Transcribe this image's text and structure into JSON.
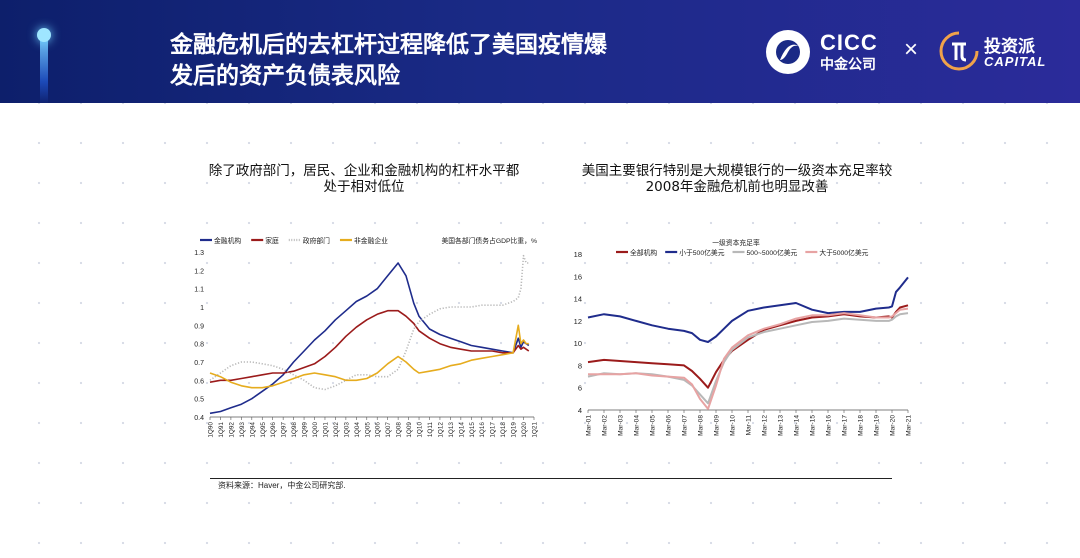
{
  "header": {
    "title_line1": "金融危机后的去杠杆过程降低了美国疫情爆",
    "title_line2": "发后的资产负债表风险",
    "logo_cicc_en": "CICC",
    "logo_cicc_cn": "中金公司",
    "logo_separator": "×",
    "logo_partner_cn": "投资派",
    "logo_partner_en": "CAPITAL"
  },
  "colors": {
    "banner": "#1a2a86",
    "navy": "#1f2c8c",
    "darkred": "#9b1b1b",
    "gray": "#b8b8b8",
    "gold": "#e6ac1e",
    "pink": "#e7a3a3"
  },
  "left_chart_title_1": "除了政府部门，居民、企业和金融机构的杠杆水平都",
  "left_chart_title_2": "处于相对低位",
  "right_chart_title_1": "美国主要银行特别是大规模银行的一级资本充足率较",
  "right_chart_title_2": "2008年金融危机前也明显改善",
  "source": "资料来源：Haver，中金公司研究部.",
  "chart_data": [
    {
      "type": "line",
      "title": "美国各部门债务占GDP比重，%",
      "ylim": [
        0.4,
        1.3
      ],
      "yticks": [
        0.4,
        0.5,
        0.6,
        0.7,
        0.8,
        0.9,
        1,
        1.1,
        1.2,
        1.3
      ],
      "xticks": [
        "1Q90",
        "1Q91",
        "1Q92",
        "1Q93",
        "1Q94",
        "1Q95",
        "1Q96",
        "1Q97",
        "1Q98",
        "1Q99",
        "1Q00",
        "1Q01",
        "1Q02",
        "1Q03",
        "1Q04",
        "1Q05",
        "1Q06",
        "1Q07",
        "1Q08",
        "1Q09",
        "1Q10",
        "1Q11",
        "1Q12",
        "1Q13",
        "1Q14",
        "1Q15",
        "1Q16",
        "1Q17",
        "1Q18",
        "1Q19",
        "1Q20",
        "1Q21"
      ],
      "x": [
        1990,
        1991,
        1992,
        1993,
        1994,
        1995,
        1996,
        1997,
        1998,
        1999,
        2000,
        2001,
        2002,
        2003,
        2004,
        2005,
        2006,
        2007,
        2008,
        2008.75,
        2009.5,
        2010,
        2011,
        2012,
        2013,
        2014,
        2015,
        2016,
        2017,
        2018,
        2019,
        2019.5,
        2019.75,
        2020,
        2020.25,
        2020.5,
        2021
      ],
      "legend_position": "top",
      "series": [
        {
          "name": "金融机构",
          "style": "solid",
          "color": "#1f2c8c",
          "values": [
            0.42,
            0.43,
            0.45,
            0.47,
            0.5,
            0.54,
            0.58,
            0.63,
            0.7,
            0.76,
            0.82,
            0.87,
            0.93,
            0.98,
            1.03,
            1.06,
            1.1,
            1.17,
            1.24,
            1.17,
            1.02,
            0.95,
            0.88,
            0.85,
            0.83,
            0.81,
            0.79,
            0.78,
            0.77,
            0.76,
            0.75,
            0.83,
            0.78,
            0.81,
            0.8,
            0.79,
            null
          ]
        },
        {
          "name": "家庭",
          "style": "solid",
          "color": "#9b1b1b",
          "values": [
            0.59,
            0.6,
            0.6,
            0.61,
            0.62,
            0.63,
            0.64,
            0.64,
            0.65,
            0.67,
            0.69,
            0.73,
            0.78,
            0.84,
            0.89,
            0.93,
            0.96,
            0.98,
            0.98,
            0.95,
            0.91,
            0.87,
            0.83,
            0.8,
            0.78,
            0.77,
            0.76,
            0.76,
            0.76,
            0.75,
            0.75,
            0.79,
            0.77,
            0.78,
            0.77,
            0.76,
            null
          ]
        },
        {
          "name": "政府部门",
          "style": "dotted",
          "color": "#b8b8b8",
          "values": [
            0.6,
            0.64,
            0.68,
            0.7,
            0.7,
            0.69,
            0.68,
            0.66,
            0.63,
            0.6,
            0.56,
            0.55,
            0.57,
            0.6,
            0.63,
            0.63,
            0.62,
            0.62,
            0.66,
            0.76,
            0.88,
            0.92,
            0.96,
            0.99,
            1.0,
            1.0,
            1.0,
            1.01,
            1.01,
            1.01,
            1.03,
            1.05,
            1.1,
            1.28,
            1.24,
            1.24,
            null
          ]
        },
        {
          "name": "非金融企业",
          "style": "solid",
          "color": "#e6ac1e",
          "values": [
            0.64,
            0.62,
            0.59,
            0.57,
            0.56,
            0.56,
            0.57,
            0.59,
            0.61,
            0.63,
            0.64,
            0.63,
            0.62,
            0.6,
            0.6,
            0.61,
            0.64,
            0.69,
            0.73,
            0.7,
            0.66,
            0.64,
            0.65,
            0.66,
            0.68,
            0.69,
            0.71,
            0.72,
            0.73,
            0.74,
            0.75,
            0.9,
            0.8,
            0.82,
            0.8,
            0.8,
            null
          ]
        }
      ]
    },
    {
      "type": "line",
      "title": "一级资本充足率",
      "ylim": [
        4,
        18
      ],
      "yticks": [
        4,
        6,
        8,
        10,
        12,
        14,
        16,
        18
      ],
      "xticks": [
        "Mar-01",
        "Mar-02",
        "Mar-03",
        "Mar-04",
        "Mar-05",
        "Mar-06",
        "Mar-07",
        "Mar-08",
        "Mar-09",
        "Mar-10",
        "Mar-11",
        "Mar-12",
        "Mar-13",
        "Mar-14",
        "Mar-15",
        "Mar-16",
        "Mar-17",
        "Mar-18",
        "Mar-19",
        "Mar-20",
        "Mar-21"
      ],
      "x": [
        2001,
        2002,
        2003,
        2004,
        2005,
        2006,
        2007,
        2007.5,
        2008,
        2008.5,
        2009,
        2009.5,
        2010,
        2011,
        2012,
        2013,
        2014,
        2015,
        2016,
        2017,
        2018,
        2019,
        2019.8,
        2020,
        2020.25,
        2020.5,
        2021
      ],
      "legend_position": "top",
      "series": [
        {
          "name": "全部机构",
          "color": "#9b1b1b",
          "values": [
            8.3,
            8.5,
            8.4,
            8.3,
            8.2,
            8.1,
            8.0,
            7.5,
            6.8,
            6.0,
            7.4,
            8.5,
            9.3,
            10.3,
            11.2,
            11.6,
            12.0,
            12.3,
            12.4,
            12.6,
            12.4,
            12.3,
            12.4,
            12.3,
            12.8,
            13.2,
            13.4
          ]
        },
        {
          "name": "小于500亿美元",
          "color": "#1f2c8c",
          "values": [
            12.3,
            12.6,
            12.4,
            12.0,
            11.6,
            11.3,
            11.1,
            10.9,
            10.3,
            10.1,
            10.6,
            11.3,
            12.0,
            12.9,
            13.2,
            13.4,
            13.6,
            13.0,
            12.7,
            12.8,
            12.8,
            13.1,
            13.2,
            13.3,
            14.6,
            15.0,
            15.9
          ]
        },
        {
          "name": "500~5000亿美元",
          "color": "#b8b8b8",
          "values": [
            7.0,
            7.3,
            7.2,
            7.3,
            7.2,
            7.0,
            6.7,
            6.2,
            5.4,
            4.6,
            6.6,
            8.3,
            9.4,
            10.5,
            11.0,
            11.3,
            11.6,
            11.9,
            12.0,
            12.2,
            12.1,
            12.0,
            12.0,
            12.1,
            12.4,
            12.6,
            12.7
          ]
        },
        {
          "name": "大于5000亿美元",
          "color": "#e7a3a3",
          "values": [
            7.2,
            7.2,
            7.2,
            7.3,
            7.1,
            7.0,
            6.9,
            6.3,
            5.0,
            4.1,
            6.2,
            8.6,
            9.6,
            10.7,
            11.3,
            11.7,
            12.2,
            12.5,
            12.5,
            12.7,
            12.5,
            12.3,
            12.3,
            12.4,
            12.7,
            13.0,
            13.1
          ]
        }
      ]
    }
  ]
}
